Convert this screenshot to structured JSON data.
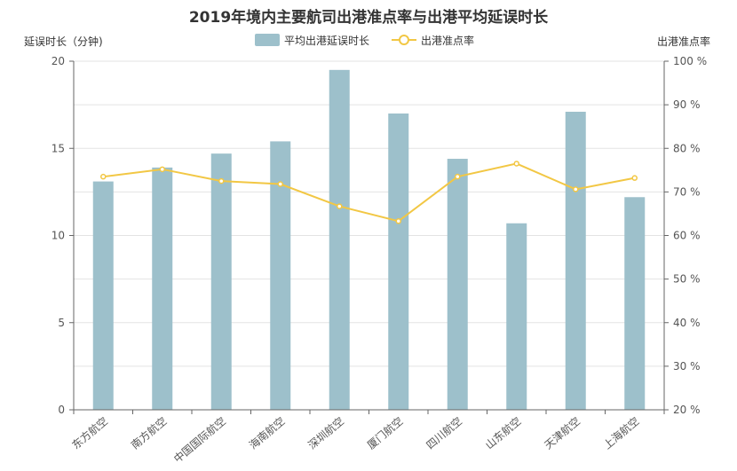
{
  "chart_data": {
    "type": "bar",
    "title": "2019年境内主要航司出港准点率与出港平均延误时长",
    "categories": [
      "东方航空",
      "南方航空",
      "中国国际航空",
      "海南航空",
      "深圳航空",
      "厦门航空",
      "四川航空",
      "山东航空",
      "天津航空",
      "上海航空"
    ],
    "series": [
      {
        "name": "平均出港延误时长",
        "type": "bar",
        "axis": "left",
        "color": "#9dc0cb",
        "values": [
          13.1,
          13.9,
          14.7,
          15.4,
          19.5,
          17.0,
          14.4,
          10.7,
          17.1,
          12.2
        ]
      },
      {
        "name": "出港准点率",
        "type": "line",
        "axis": "right",
        "color": "#f2c744",
        "values": [
          73.5,
          75.2,
          72.5,
          71.8,
          66.7,
          63.3,
          73.5,
          76.5,
          70.6,
          73.2
        ]
      }
    ],
    "y_left": {
      "label": "延误时长（分钟)",
      "min": 0,
      "max": 20,
      "ticks": [
        "0",
        "5",
        "10",
        "15",
        "20"
      ]
    },
    "y_right": {
      "label": "出港准点率",
      "min": 20,
      "max": 100,
      "ticks": [
        "20 %",
        "30 %",
        "40 %",
        "50 %",
        "60 %",
        "70 %",
        "80 %",
        "90 %",
        "100 %"
      ]
    },
    "grid": true,
    "legend_position": "top-center"
  }
}
